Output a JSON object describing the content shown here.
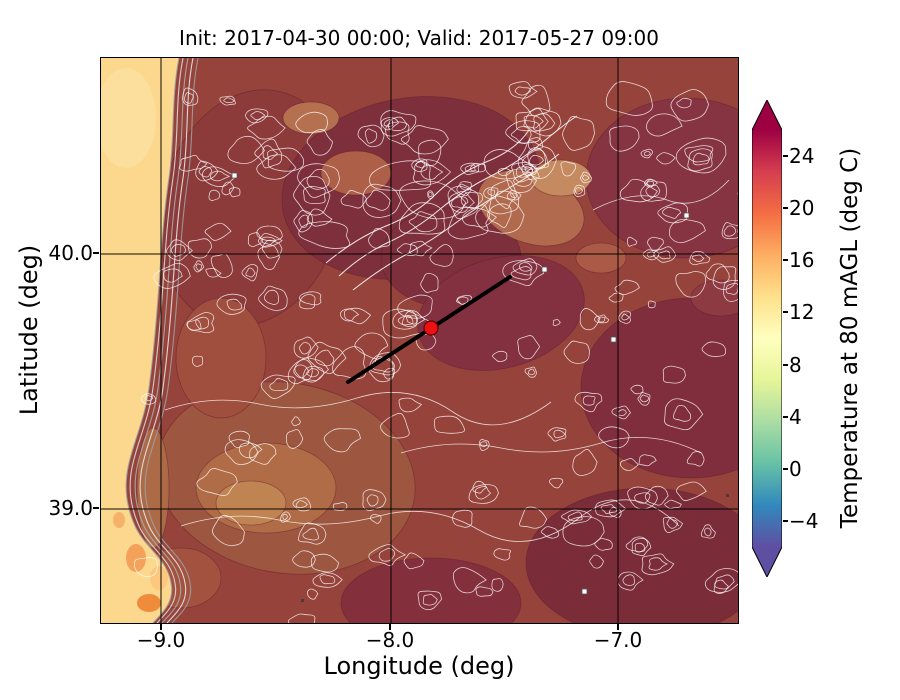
{
  "title": "Init: 2017-04-30 00:00; Valid: 2017-05-27 09:00",
  "axes": {
    "xlabel": "Longitude (deg)",
    "ylabel": "Latitude (deg)",
    "xticks": [
      "−9.0",
      "−8.0",
      "−7.0"
    ],
    "yticks": [
      "40.0",
      "39.0"
    ]
  },
  "colorbar": {
    "label": "Temperature at 80 mAGL (deg C)",
    "ticks": [
      "24",
      "20",
      "16",
      "12",
      "8",
      "4",
      "0",
      "−4"
    ]
  },
  "chart_data": {
    "type": "heatmap",
    "subtype": "filled-contour temperature map with terrain contour overlay",
    "title": "Init: 2017-04-30 00:00; Valid: 2017-05-27 09:00",
    "xlabel": "Longitude (deg)",
    "ylabel": "Latitude (deg)",
    "xlim": [
      -9.26,
      -6.46
    ],
    "ylim": [
      38.55,
      40.77
    ],
    "xticks": [
      -9.0,
      -8.0,
      -7.0
    ],
    "yticks": [
      39.0,
      40.0
    ],
    "grid": "black gridlines at integer degrees",
    "colorbar": {
      "label": "Temperature at 80 mAGL (deg C)",
      "ticks": [
        -4,
        0,
        4,
        8,
        12,
        16,
        20,
        24
      ],
      "range_shown": [
        -6,
        26
      ],
      "extend": "both",
      "colormap": "Spectral_r",
      "colormap_anchors_low_to_high": [
        "#5e4fa2",
        "#3288bd",
        "#66c2a5",
        "#abdda4",
        "#e6f598",
        "#ffffbf",
        "#fee08b",
        "#fdae61",
        "#f46d43",
        "#d53e4f",
        "#9e0142"
      ]
    },
    "features": {
      "ocean_west_strip_temp_c": 12,
      "land_temp_range_c": [
        17,
        26
      ],
      "overlay": "dense white elevation contour lines over land; gray contour band along coastline",
      "marker_point": {
        "lon": -7.83,
        "lat": 39.71,
        "style": "red filled circle"
      },
      "transect_line": {
        "from": {
          "lon": -8.19,
          "lat": 39.5
        },
        "to": {
          "lon": -7.48,
          "lat": 39.91
        },
        "style": "thick black straight line through marker"
      }
    }
  }
}
